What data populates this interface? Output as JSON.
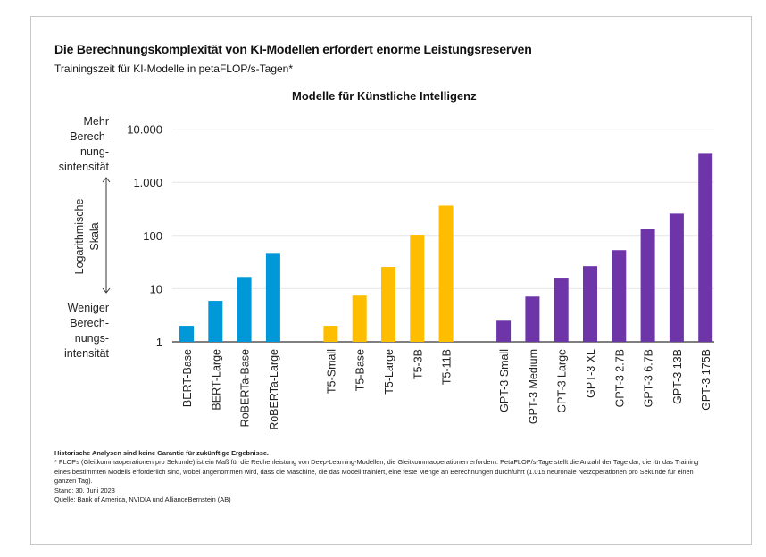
{
  "title": "Die Berechnungskomplexität von KI-Modellen erfordert enorme Leistungsreserven",
  "subtitle": "Trainingszeit für KI-Modelle in petaFLOP/s-Tagen*",
  "side_labels": {
    "top": [
      "Mehr",
      "Berech-",
      "nung-",
      "sintensität"
    ],
    "middle": [
      "Logarithmische",
      "Skala"
    ],
    "bottom": [
      "Weniger",
      "Berech-",
      "nungs-",
      "intensität"
    ]
  },
  "notes": {
    "disclaimer": "Historische Analysen sind keine Garantie für zukünftige Ergebnisse.",
    "footnote": "* FLOPs (Gleitkommaoperationen pro Sekunde) ist ein Maß für die Rechenleistung von Deep-Learning-Modellen, die Gleitkommaoperationen erfordern. PetaFLOP/s-Tage stellt die Anzahl der Tage dar, die für das Training eines bestimmten Modells erforderlich sind, wobei angenommen wird, dass die Maschine, die das Modell trainiert, eine feste Menge an Berechnungen durchführt (1.015 neuronale Netzoperationen pro Sekunde für einen ganzen Tag).",
    "date": "Stand: 30. Juni 2023",
    "source": "Quelle: Bank of America, NVIDIA und AllianceBernstein (AB)"
  },
  "chart_data": {
    "type": "bar",
    "title": "Modelle für Künstliche Intelligenz",
    "yscale": "log",
    "ylim": [
      1,
      10000
    ],
    "yticks": [
      1,
      10,
      100,
      1000,
      10000
    ],
    "ytick_labels": [
      "1",
      "10",
      "100",
      "1.000",
      "10.000"
    ],
    "grid": true,
    "groups": [
      {
        "color": "#0098d8",
        "categories": [
          "BERT-Base",
          "BERT-Large",
          "RoBERTa-Base",
          "RoBERTa-Large"
        ],
        "values": [
          2,
          5.9,
          16.6,
          47
        ]
      },
      {
        "color": "#ffbd00",
        "categories": [
          "T5-Small",
          "T5-Base",
          "T5-Large",
          "T5-3B",
          "T5-11B"
        ],
        "values": [
          2,
          7.4,
          25.6,
          103,
          363
        ]
      },
      {
        "color": "#6e35a8",
        "categories": [
          "GPT-3 Small",
          "GPT-3 Medium",
          "GPT-3 Large",
          "GPT-3 XL",
          "GPT-3 2.7B",
          "GPT-3 6.7B",
          "GPT-3 13B",
          "GPT-3 175B"
        ],
        "values": [
          2.5,
          7.1,
          15.5,
          26.5,
          53,
          134,
          257,
          3550
        ]
      }
    ]
  }
}
